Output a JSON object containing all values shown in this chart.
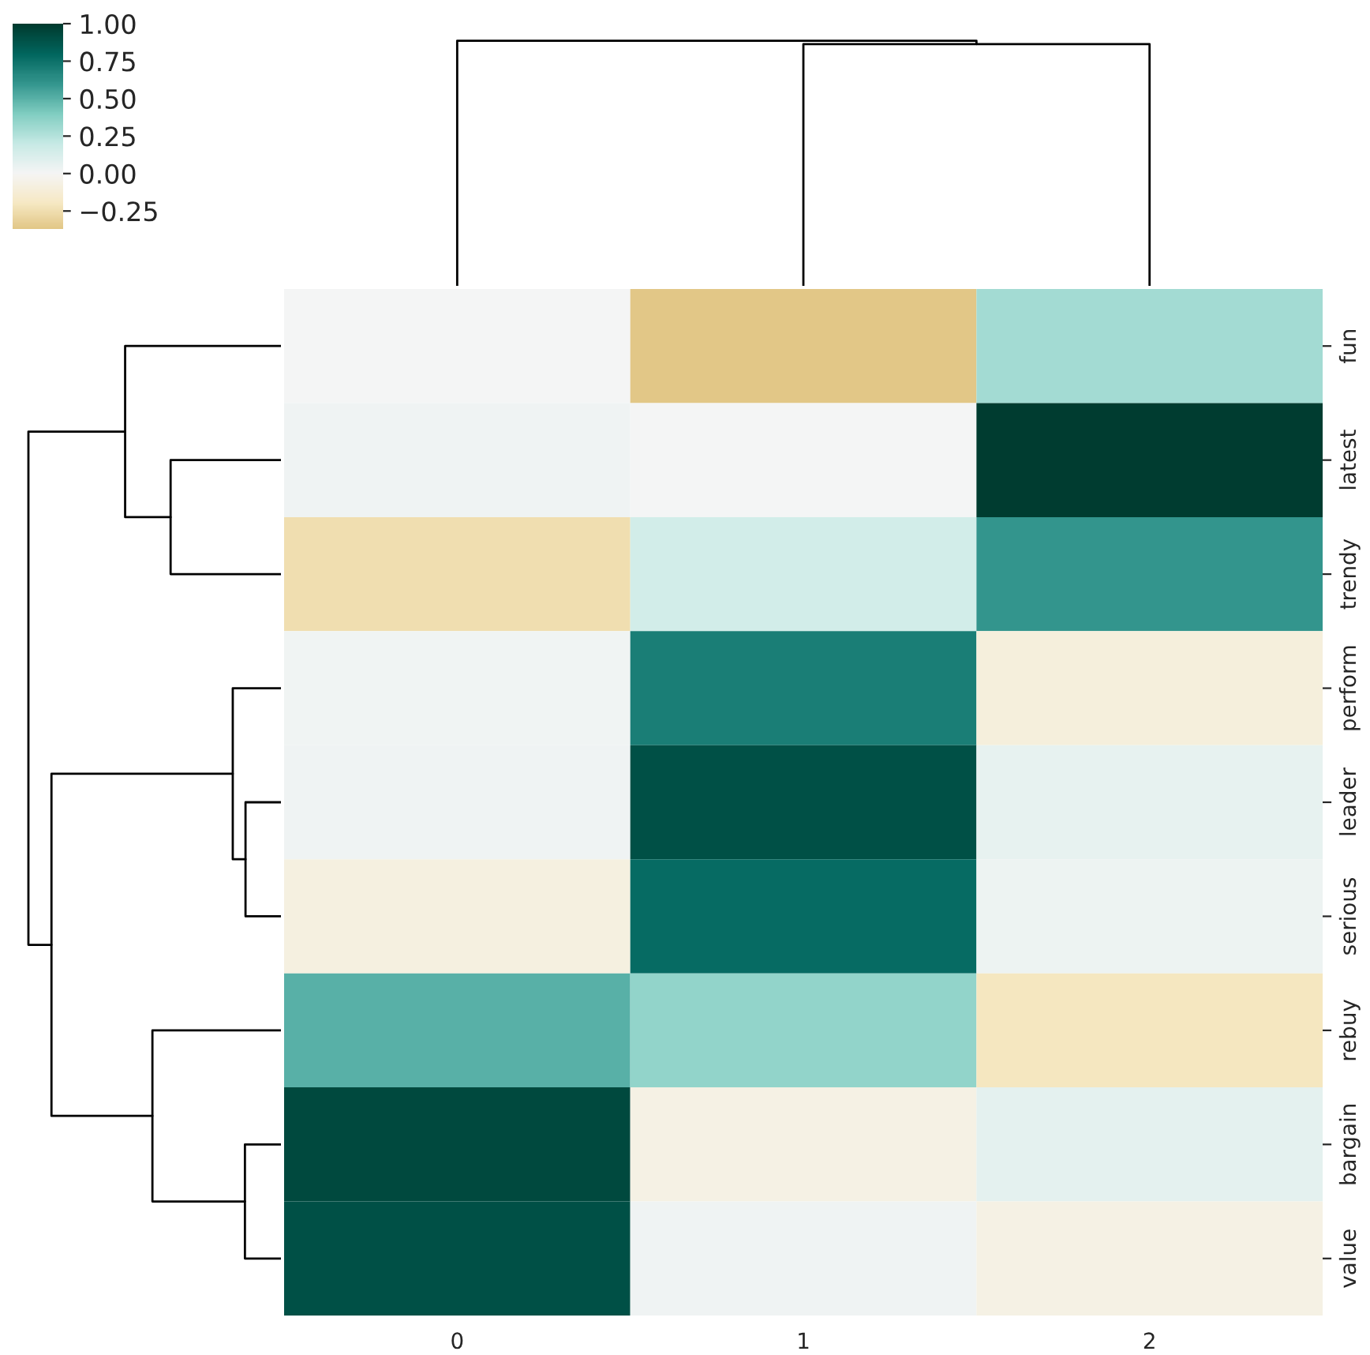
{
  "chart_data": {
    "type": "heatmap",
    "categories": [
      "0",
      "1",
      "2"
    ],
    "y_categories": [
      "fun",
      "latest",
      "trendy",
      "perform",
      "leader",
      "serious",
      "rebuy",
      "bargain",
      "value"
    ],
    "cells": [
      [
        0.0,
        -0.37,
        0.3
      ],
      [
        0.03,
        0.0,
        1.0
      ],
      [
        -0.25,
        0.15,
        0.6
      ],
      [
        0.02,
        0.7,
        -0.1
      ],
      [
        0.03,
        0.9,
        0.06
      ],
      [
        -0.08,
        0.78,
        0.04
      ],
      [
        0.5,
        0.35,
        -0.2
      ],
      [
        0.93,
        -0.07,
        0.07
      ],
      [
        0.9,
        0.03,
        -0.06
      ]
    ],
    "clim": [
      -0.37,
      1.0
    ],
    "cticks": [
      {
        "value": -0.25,
        "label": "−0.25"
      },
      {
        "value": 0,
        "label": "0.00"
      },
      {
        "value": 0.25,
        "label": "0.25"
      },
      {
        "value": 0.5,
        "label": "0.50"
      },
      {
        "value": 0.75,
        "label": "0.75"
      },
      {
        "value": 1,
        "label": "1.00"
      }
    ]
  }
}
